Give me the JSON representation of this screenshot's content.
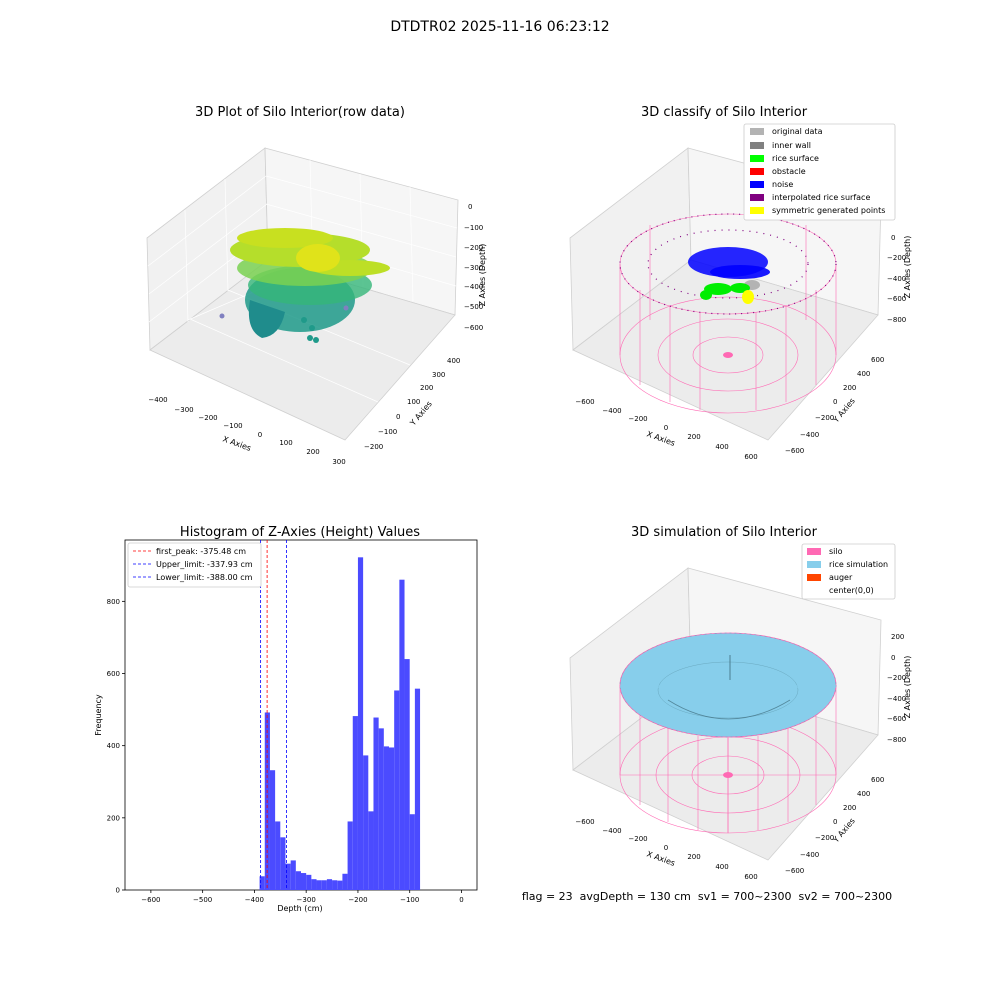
{
  "figure": {
    "suptitle": "DTDTR02 2025-11-16 06:23:12",
    "footer": "flag = 23  avgDepth = 130 cm  sv1 = 700~2300  sv2 = 700~2300"
  },
  "panels": {
    "raw": {
      "title": "3D Plot of Silo Interior(row data)",
      "xlabel": "X Axies",
      "ylabel": "Y Axies",
      "zlabel": "Z Axies (Depth)",
      "xticks": [
        "−400",
        "−300",
        "−200",
        "−100",
        "0",
        "100",
        "200",
        "300"
      ],
      "yticks": [
        "−200",
        "−100",
        "0",
        "100",
        "200",
        "300",
        "400"
      ],
      "zticks": [
        "0",
        "−100",
        "−200",
        "−300",
        "−400",
        "−500",
        "−600"
      ]
    },
    "classify": {
      "title": "3D classify of Silo Interior",
      "xlabel": "X Axies",
      "ylabel": "Y Axies",
      "zlabel": "Z Axies (Depth)",
      "xticks": [
        "−600",
        "−400",
        "−200",
        "0",
        "200",
        "400",
        "600"
      ],
      "yticks": [
        "−600",
        "−400",
        "−200",
        "0",
        "200",
        "400",
        "600"
      ],
      "zticks": [
        "0",
        "−200",
        "−400",
        "−600",
        "−800"
      ],
      "legend": [
        {
          "label": "original data",
          "color": "#b3b3b3"
        },
        {
          "label": "inner wall",
          "color": "#808080"
        },
        {
          "label": "rice surface",
          "color": "#00ff00"
        },
        {
          "label": "obstacle",
          "color": "#ff0000"
        },
        {
          "label": "noise",
          "color": "#0000ff"
        },
        {
          "label": "interpolated rice surface",
          "color": "#800080"
        },
        {
          "label": "symmetric generated points",
          "color": "#ffff00"
        }
      ]
    },
    "simulation": {
      "title": "3D simulation of Silo Interior",
      "xlabel": "X Axies",
      "ylabel": "Y Axies",
      "zlabel": "Z Axies (Depth)",
      "xticks": [
        "−600",
        "−400",
        "−200",
        "0",
        "200",
        "400",
        "600"
      ],
      "yticks": [
        "−600",
        "−400",
        "−200",
        "0",
        "200",
        "400",
        "600"
      ],
      "zticks": [
        "200",
        "0",
        "−200",
        "−400",
        "−600",
        "−800"
      ],
      "legend": [
        {
          "label": "silo",
          "color": "#ff69b4"
        },
        {
          "label": "rice simulation",
          "color": "#87ceeb"
        },
        {
          "label": "auger",
          "color": "#ff4500"
        },
        {
          "label": "center(0,0)",
          "color": "#ffffff"
        }
      ]
    }
  },
  "chart_data": {
    "type": "bar",
    "title": "Histogram of Z-Axies (Height) Values",
    "xlabel": "Depth (cm)",
    "ylabel": "Frequency",
    "xlim": [
      -650,
      30
    ],
    "ylim": [
      0,
      970
    ],
    "xticks": [
      -600,
      -500,
      -400,
      -300,
      -200,
      -100,
      0
    ],
    "xtick_labels": [
      "−600",
      "−500",
      "−400",
      "−300",
      "−200",
      "−100",
      "0"
    ],
    "yticks": [
      0,
      200,
      400,
      600,
      800
    ],
    "bin_width": 10,
    "bins": [
      {
        "x0": -390,
        "count": 38
      },
      {
        "x0": -380,
        "count": 492
      },
      {
        "x0": -370,
        "count": 332
      },
      {
        "x0": -360,
        "count": 190
      },
      {
        "x0": -350,
        "count": 146
      },
      {
        "x0": -340,
        "count": 73
      },
      {
        "x0": -330,
        "count": 82
      },
      {
        "x0": -320,
        "count": 52
      },
      {
        "x0": -310,
        "count": 47
      },
      {
        "x0": -300,
        "count": 42
      },
      {
        "x0": -290,
        "count": 30
      },
      {
        "x0": -280,
        "count": 27
      },
      {
        "x0": -270,
        "count": 27
      },
      {
        "x0": -260,
        "count": 30
      },
      {
        "x0": -250,
        "count": 27
      },
      {
        "x0": -240,
        "count": 26
      },
      {
        "x0": -230,
        "count": 45
      },
      {
        "x0": -220,
        "count": 190
      },
      {
        "x0": -210,
        "count": 482
      },
      {
        "x0": -200,
        "count": 922
      },
      {
        "x0": -190,
        "count": 373
      },
      {
        "x0": -180,
        "count": 218
      },
      {
        "x0": -170,
        "count": 478
      },
      {
        "x0": -160,
        "count": 448
      },
      {
        "x0": -150,
        "count": 398
      },
      {
        "x0": -140,
        "count": 395
      },
      {
        "x0": -130,
        "count": 553
      },
      {
        "x0": -120,
        "count": 860
      },
      {
        "x0": -110,
        "count": 640
      },
      {
        "x0": -100,
        "count": 210
      },
      {
        "x0": -90,
        "count": 558
      }
    ],
    "lines": [
      {
        "label": "first_peak: -375.48 cm",
        "x": -375.48,
        "color": "#ff0000"
      },
      {
        "label": "Upper_limit: -337.93 cm",
        "x": -337.93,
        "color": "#0000ff"
      },
      {
        "label": "Lower_limit: -388.00 cm",
        "x": -388.0,
        "color": "#0000ff"
      }
    ],
    "bar_color": "#4b4bff"
  }
}
